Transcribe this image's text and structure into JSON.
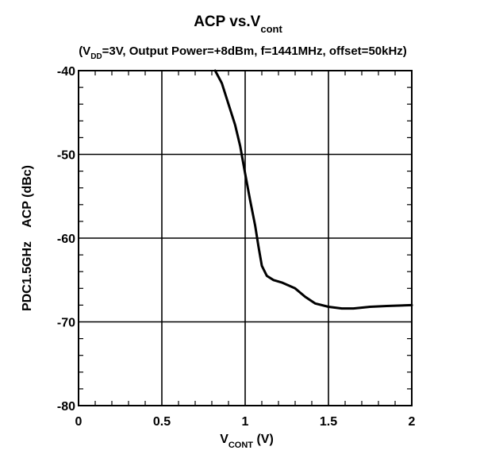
{
  "chart_data": {
    "type": "line",
    "title": {
      "main": "ACP vs.V",
      "main_sub": "cont",
      "subtitle_open": "(V",
      "subtitle_sub": "DD",
      "subtitle_rest": "=3V, Output Power=+8dBm, f=1441MHz, offset=50kHz)"
    },
    "xlabel": {
      "main": "V",
      "sub": "CONT",
      "unit": " (V)"
    },
    "ylabel": "PDC1.5GHz    ACP (dBc)",
    "xlim": [
      0,
      2
    ],
    "ylim": [
      -80,
      -40
    ],
    "x_ticks": [
      "0",
      "0.5",
      "1",
      "1.5",
      "2"
    ],
    "y_ticks": [
      "-40",
      "-50",
      "-60",
      "-70",
      "-80"
    ],
    "grid": true,
    "line_color": "#000000",
    "series": [
      {
        "x": [
          0.82,
          0.86,
          0.9,
          0.94,
          0.97,
          1.0,
          1.03,
          1.06,
          1.08,
          1.1,
          1.13,
          1.17,
          1.22,
          1.3,
          1.36,
          1.42,
          1.5,
          1.58,
          1.65,
          1.75,
          1.85,
          2.0
        ],
        "y": [
          -40,
          -41.5,
          -44,
          -46.5,
          -49,
          -52.3,
          -55.5,
          -58.5,
          -61,
          -63.3,
          -64.5,
          -65,
          -65.3,
          -66,
          -67,
          -67.8,
          -68.2,
          -68.4,
          -68.4,
          -68.2,
          -68.1,
          -68
        ]
      }
    ]
  }
}
